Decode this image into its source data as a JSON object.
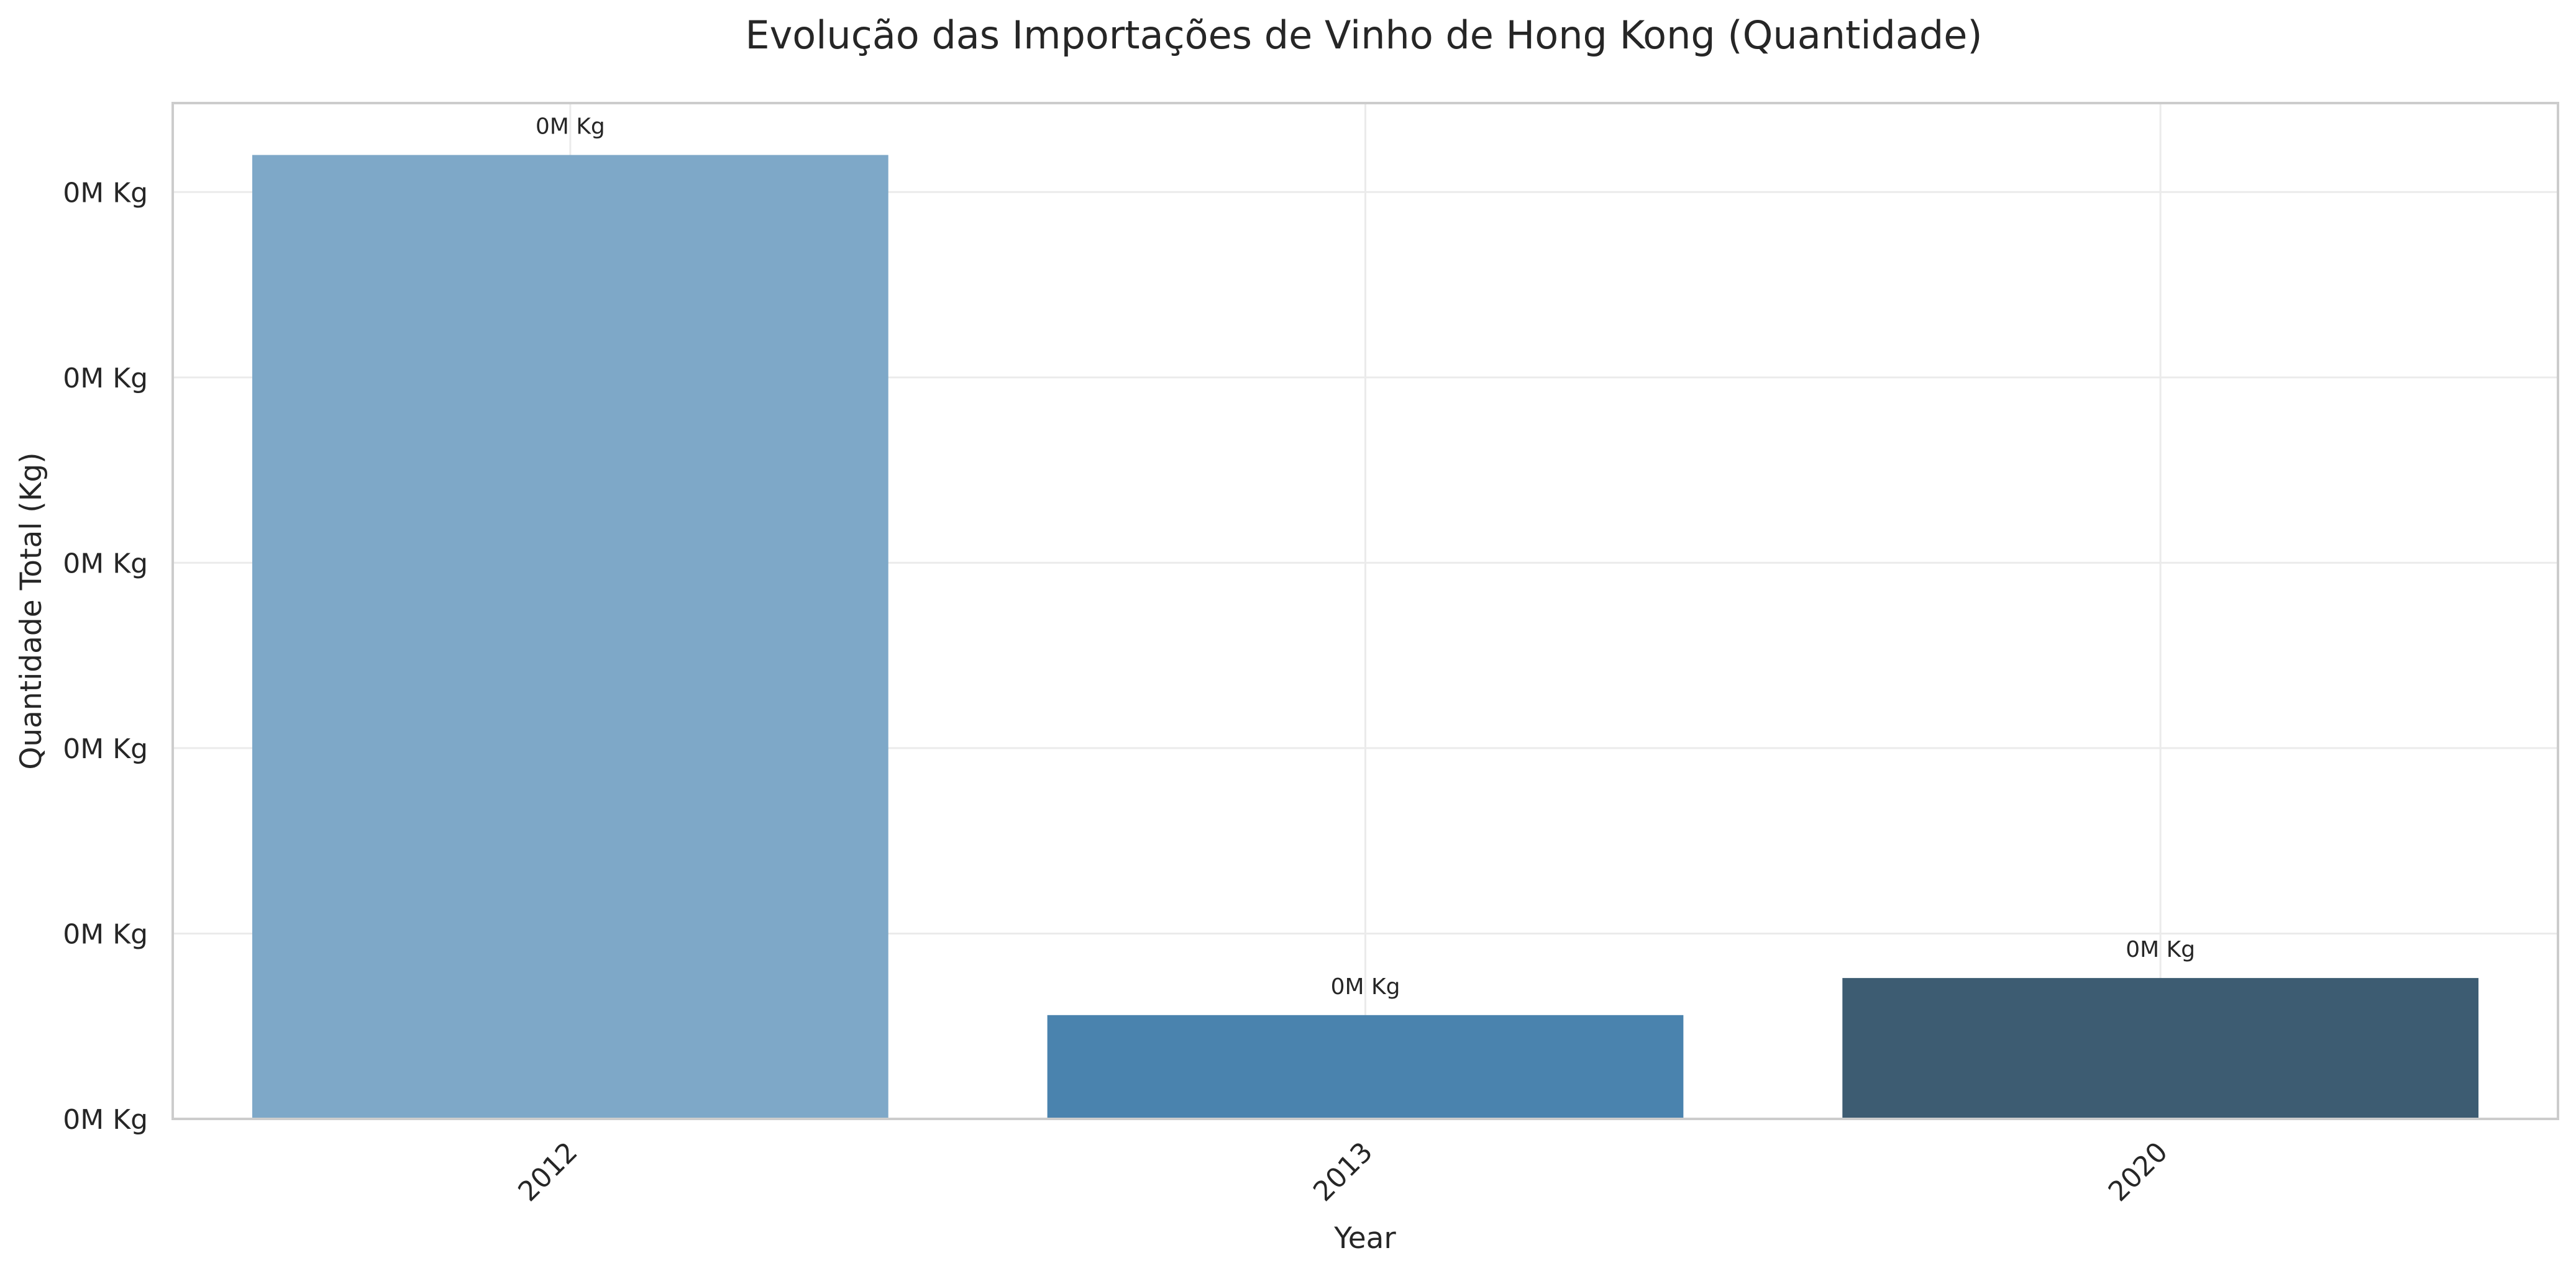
{
  "chart_data": {
    "type": "bar",
    "title": "Evolução das Importações de Vinho de Hong Kong (Quantidade)",
    "xlabel": "Year",
    "ylabel": "Quantidade Total (Kg)",
    "categories": [
      "2012",
      "2013",
      "2020"
    ],
    "values": [
      0.26,
      0.028,
      0.038
    ],
    "value_labels": [
      "0M Kg",
      "0M Kg",
      "0M Kg"
    ],
    "bar_colors": [
      "#7ea8c8",
      "#4a83ae",
      "#3d5c72"
    ],
    "y_ticks": [
      0,
      0.05,
      0.1,
      0.15,
      0.2,
      0.25
    ],
    "y_tick_labels": [
      "0M Kg",
      "0M Kg",
      "0M Kg",
      "0M Kg",
      "0M Kg",
      "0M Kg"
    ],
    "ylim": [
      0,
      0.274
    ],
    "x_tick_rotation": "45deg",
    "grid": true,
    "legend": false
  }
}
